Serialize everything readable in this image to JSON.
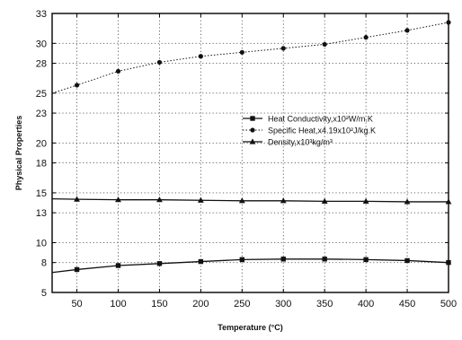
{
  "chart_data": {
    "type": "line",
    "xlabel": "Temperature (°C)",
    "ylabel": "Physical Properties",
    "xlim": [
      20,
      500
    ],
    "ylim": [
      5,
      33
    ],
    "xticks": [
      50,
      100,
      150,
      200,
      250,
      300,
      350,
      400,
      450,
      500
    ],
    "yticks": [
      5,
      8,
      10,
      13,
      15,
      18,
      20,
      23,
      25,
      28,
      30,
      33
    ],
    "legend_position": "right-middle",
    "grid": "dotted",
    "colors": {
      "series": "#111111",
      "grid": "#555555",
      "axis": "#000000",
      "background": "#ffffff"
    },
    "x": [
      20,
      50,
      100,
      150,
      200,
      250,
      300,
      350,
      400,
      450,
      500
    ],
    "series": [
      {
        "name": "Heat Conductivity,x10²W/m.K",
        "marker": "square",
        "dash": "solid",
        "values": [
          7.0,
          7.3,
          7.7,
          7.9,
          8.1,
          8.3,
          8.35,
          8.35,
          8.3,
          8.2,
          8.0
        ]
      },
      {
        "name": "Specific Heat,x4.19x10²J/kg.K",
        "marker": "circle",
        "dash": "dotted",
        "values": [
          25.0,
          25.8,
          27.2,
          28.1,
          28.7,
          29.1,
          29.5,
          29.9,
          30.6,
          31.3,
          32.1
        ]
      },
      {
        "name": "Density,x10³kg/m³",
        "marker": "triangle",
        "dash": "solid",
        "values": [
          14.4,
          14.35,
          14.3,
          14.3,
          14.25,
          14.2,
          14.2,
          14.15,
          14.15,
          14.1,
          14.1
        ]
      }
    ]
  }
}
